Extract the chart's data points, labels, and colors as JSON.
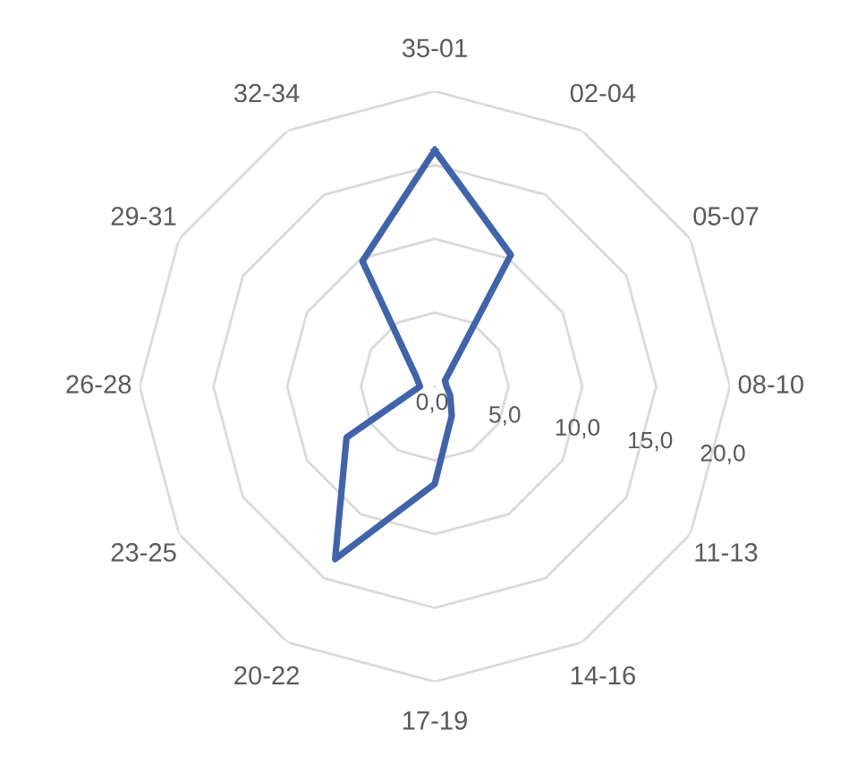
{
  "chart_data": {
    "type": "radar",
    "categories": [
      "35-01",
      "02-04",
      "05-07",
      "08-10",
      "11-13",
      "14-16",
      "17-19",
      "20-22",
      "23-25",
      "26-28",
      "29-31",
      "32-34"
    ],
    "series": [
      {
        "color": "#3f64ad",
        "values": [
          16,
          10.3,
          0.8,
          0.8,
          1.2,
          2.3,
          6.6,
          13.5,
          6.9,
          1.0,
          1.5,
          9.8
        ]
      }
    ],
    "ylim": [
      0,
      20
    ],
    "yticks": [
      {
        "value": 0,
        "label": "0,0"
      },
      {
        "value": 5,
        "label": "5,0"
      },
      {
        "value": 10,
        "label": "10,0"
      },
      {
        "value": 15,
        "label": "15,0"
      },
      {
        "value": 20,
        "label": "20,0"
      }
    ],
    "grid": true
  }
}
